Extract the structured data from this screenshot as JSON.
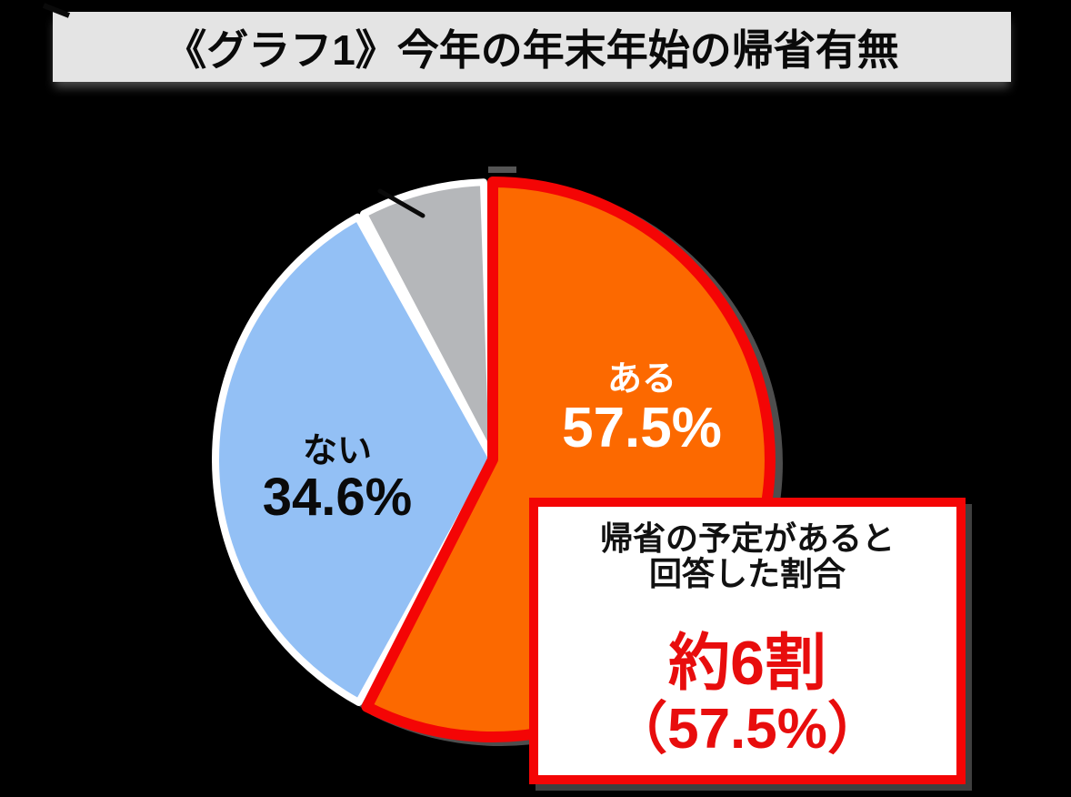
{
  "title": {
    "text": "《グラフ1》今年の年末年始の帰省有無"
  },
  "chart_data": {
    "type": "pie",
    "title": "《グラフ1》今年の年末年始の帰省有無",
    "direction": "clockwise",
    "start_angle_deg": 0,
    "legend": "none",
    "total": 100,
    "slices": [
      {
        "key": "aru",
        "label": "ある",
        "value": 57.5,
        "color": "#FC6900",
        "border_color": "#F40505",
        "label_color": "#FFFFFF"
      },
      {
        "key": "nai",
        "label": "ない",
        "value": 34.6,
        "color": "#93C0F5",
        "border_color": "#FFFFFF",
        "label_color": "#000000"
      },
      {
        "key": "other",
        "label": "",
        "value": 7.9,
        "color": "#B5B7BA",
        "border_color": "#FFFFFF",
        "label_color": "#000000"
      }
    ]
  },
  "pie_labels": {
    "aru_name": "ある",
    "aru_value": "57.5%",
    "nai_name": "ない",
    "nai_value": "34.6%"
  },
  "callout": {
    "line1": "帰省の予定があると",
    "line2": "回答した割合",
    "highlight_main": "約6割",
    "highlight_sub": "（57.5%）"
  },
  "colors": {
    "background": "#000000",
    "banner_background": "#E4E4E4",
    "accent_orange": "#FC6900",
    "accent_red": "#F40505",
    "accent_blue": "#93C0F5",
    "accent_gray": "#B5B7BA",
    "highlight_text_red": "#E80D0D",
    "shadow_gray": "#4E4E4E"
  }
}
